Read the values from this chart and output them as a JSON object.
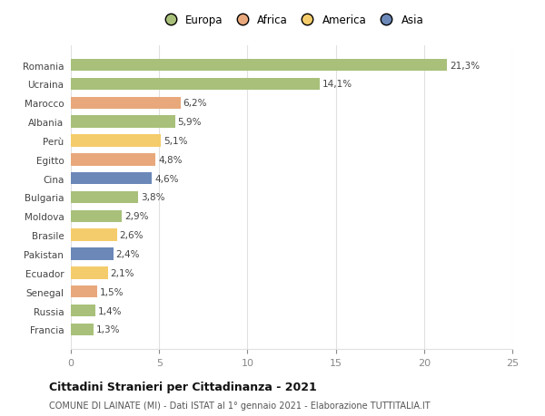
{
  "categories": [
    "Francia",
    "Russia",
    "Senegal",
    "Ecuador",
    "Pakistan",
    "Brasile",
    "Moldova",
    "Bulgaria",
    "Cina",
    "Egitto",
    "Perù",
    "Albania",
    "Marocco",
    "Ucraina",
    "Romania"
  ],
  "values": [
    1.3,
    1.4,
    1.5,
    2.1,
    2.4,
    2.6,
    2.9,
    3.8,
    4.6,
    4.8,
    5.1,
    5.9,
    6.2,
    14.1,
    21.3
  ],
  "colors": [
    "#a8c07a",
    "#a8c07a",
    "#e8a87c",
    "#f5cc6b",
    "#6b88b8",
    "#f5cc6b",
    "#a8c07a",
    "#a8c07a",
    "#6b88b8",
    "#e8a87c",
    "#f5cc6b",
    "#a8c07a",
    "#e8a87c",
    "#a8c07a",
    "#a8c07a"
  ],
  "legend_labels": [
    "Europa",
    "Africa",
    "America",
    "Asia"
  ],
  "legend_colors": [
    "#a8c07a",
    "#e8a87c",
    "#f5cc6b",
    "#6b88b8"
  ],
  "title": "Cittadini Stranieri per Cittadinanza - 2021",
  "subtitle": "COMUNE DI LAINATE (MI) - Dati ISTAT al 1° gennaio 2021 - Elaborazione TUTTITALIA.IT",
  "xlim": [
    0,
    25
  ],
  "xticks": [
    0,
    5,
    10,
    15,
    20,
    25
  ],
  "background_color": "#ffffff",
  "grid_color": "#e0e0e0"
}
